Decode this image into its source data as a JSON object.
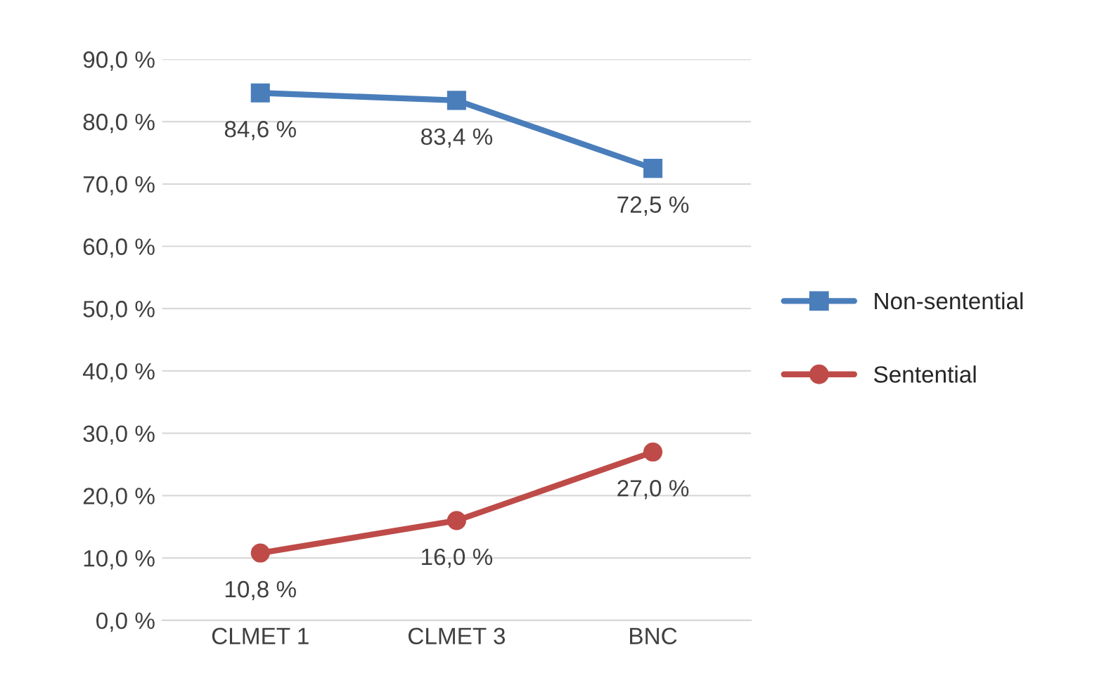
{
  "chart_data": {
    "type": "line",
    "categories": [
      "CLMET 1",
      "CLMET 3",
      "BNC"
    ],
    "series": [
      {
        "name": "Non-sentential",
        "color": "#4a7ebb",
        "marker": "square",
        "values": [
          84.6,
          83.4,
          72.5
        ],
        "value_labels": [
          "84,6 %",
          "83,4 %",
          "72,5 %"
        ]
      },
      {
        "name": "Sentential",
        "color": "#be4b48",
        "marker": "circle",
        "values": [
          10.8,
          16.0,
          27.0
        ],
        "value_labels": [
          "10,8 %",
          "16,0 %",
          "27,0 %"
        ]
      }
    ],
    "ylim": [
      0,
      90
    ],
    "yticks": [
      {
        "value": 0,
        "label": "0,0 %"
      },
      {
        "value": 10,
        "label": "10,0 %"
      },
      {
        "value": 20,
        "label": "20,0 %"
      },
      {
        "value": 30,
        "label": "30,0 %"
      },
      {
        "value": 40,
        "label": "40,0 %"
      },
      {
        "value": 50,
        "label": "50,0 %"
      },
      {
        "value": 60,
        "label": "60,0 %"
      },
      {
        "value": 70,
        "label": "70,0 %"
      },
      {
        "value": 80,
        "label": "80,0 %"
      },
      {
        "value": 90,
        "label": "90,0 %"
      }
    ],
    "grid": "y",
    "legend": "right",
    "line_style": "solid"
  }
}
